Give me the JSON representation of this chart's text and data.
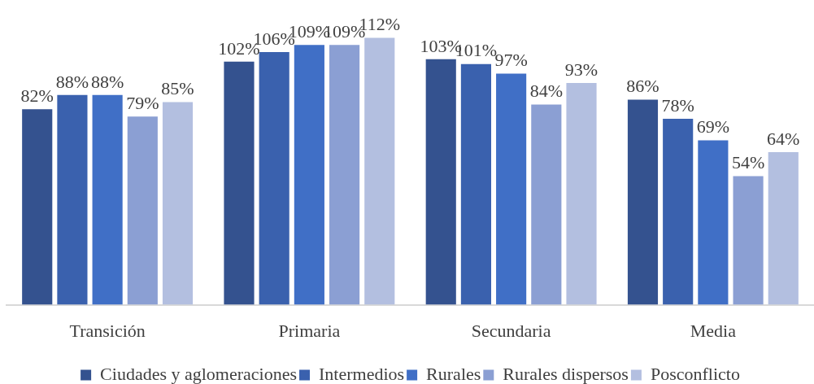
{
  "chart_data": {
    "type": "bar",
    "categories": [
      "Transición",
      "Primaria",
      "Secundaria",
      "Media"
    ],
    "series": [
      {
        "name": "Ciudades y aglomeraciones",
        "color": "#34528f",
        "values": [
          82,
          102,
          103,
          86
        ],
        "value_labels": [
          "82%",
          "102%",
          "103%",
          "86%"
        ]
      },
      {
        "name": "Intermedios",
        "color": "#3a61ae",
        "values": [
          88,
          106,
          101,
          78
        ],
        "value_labels": [
          "88%",
          "106%",
          "101%",
          "78%"
        ]
      },
      {
        "name": "Rurales",
        "color": "#406fc6",
        "values": [
          88,
          109,
          97,
          69
        ],
        "value_labels": [
          "88%",
          "109%",
          "97%",
          "69%"
        ]
      },
      {
        "name": "Rurales dispersos",
        "color": "#8b9fd3",
        "values": [
          79,
          109,
          84,
          54
        ],
        "value_labels": [
          "79%",
          "109%",
          "84%",
          "54%"
        ]
      },
      {
        "name": "Posconflicto",
        "color": "#b3bfe0",
        "values": [
          85,
          112,
          93,
          64
        ],
        "value_labels": [
          "85%",
          "112%",
          "93%",
          "64%"
        ]
      }
    ],
    "tick_labels": "x",
    "grid": false,
    "legend": "bottom"
  }
}
